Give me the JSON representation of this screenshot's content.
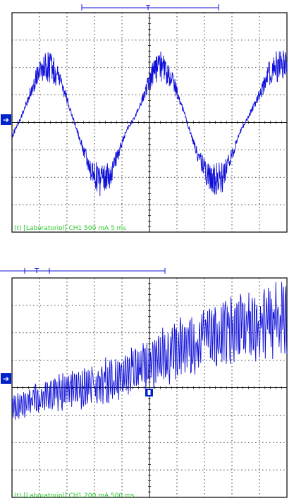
{
  "colors": {
    "background": "#ffffff",
    "trace": "#1010d8",
    "marker": "#0022cc",
    "readout_text": "#28c828"
  },
  "icons": {
    "ground_marker": "arrow-right",
    "trigger_marker": "T"
  },
  "top_panel": {
    "readout": "(t) [Laboratoriol] CH1 500 mA 5 ms",
    "trigger_label": "T"
  },
  "bottom_panel": {
    "readout": "(t) [Laboratoriol] CH1 200 mA 500 ms",
    "trigger_label": "T"
  },
  "chart_data": [
    {
      "type": "line",
      "title": "",
      "xlabel": "",
      "ylabel": "",
      "grid": true,
      "xlim": [
        0,
        50
      ],
      "ylim": [
        -2000,
        2000
      ],
      "x_unit": "ms",
      "y_unit": "mA",
      "volts_per_div": "500 mA",
      "time_per_div": "5 ms",
      "divisions": [
        10,
        8
      ],
      "description_of_signal": "sinusoid with high-frequency ripple near positive peaks and negative troughs",
      "series": [
        {
          "x": [
            0,
            1.6,
            3.2,
            4.8,
            6.4,
            8.0,
            9.6,
            11.2,
            12.8,
            14.4,
            16.0,
            17.6,
            19.2,
            20.8,
            22.4,
            24.0,
            25.6,
            27.2,
            28.8,
            30.4,
            32.0,
            33.6,
            35.2,
            36.8,
            38.4,
            40.0,
            41.6,
            43.2,
            45.5,
            47.0,
            48.5,
            50.0
          ],
          "y": [
            -250,
            80,
            500,
            900,
            1050,
            900,
            550,
            50,
            -450,
            -900,
            -1050,
            -1000,
            -600,
            -150,
            100,
            500,
            900,
            1050,
            850,
            450,
            -50,
            -550,
            -900,
            -1050,
            -1000,
            -600,
            -150,
            150,
            600,
            950,
            1050,
            1100
          ]
        }
      ]
    },
    {
      "type": "line",
      "title": "",
      "xlabel": "",
      "ylabel": "",
      "grid": true,
      "xlim": [
        0,
        5000
      ],
      "ylim": [
        -800,
        800
      ],
      "x_unit": "ms",
      "y_unit": "mA",
      "volts_per_div": "200 mA",
      "time_per_div": "500 ms",
      "divisions": [
        10,
        8
      ],
      "description_of_signal": "noisy oscillation whose center and amplitude rise over time",
      "series": [
        {
          "x": [
            0,
            250,
            500,
            750,
            1000,
            1250,
            1500,
            1750,
            2000,
            2250,
            2500,
            2750,
            3000,
            3250,
            3500,
            3750,
            4000,
            4250,
            4500,
            4750,
            5000
          ],
          "y": [
            -150,
            -100,
            -80,
            -40,
            -20,
            0,
            20,
            50,
            80,
            130,
            180,
            220,
            270,
            310,
            350,
            390,
            420,
            440,
            460,
            480,
            500
          ]
        }
      ]
    }
  ]
}
